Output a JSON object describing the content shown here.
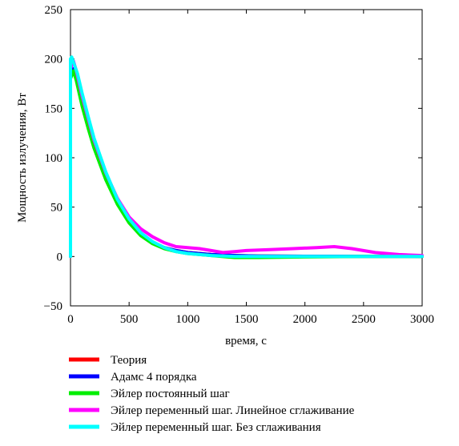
{
  "chart_data": {
    "type": "line",
    "title": "",
    "xlabel": "время, с",
    "ylabel": "Мощность излучения, Вт",
    "xlim": [
      0,
      3000
    ],
    "ylim": [
      -50,
      250
    ],
    "xticks": [
      0,
      500,
      1000,
      1500,
      2000,
      2500,
      3000
    ],
    "xtick_labels": [
      "0",
      "500",
      "1000",
      "1500",
      "2000",
      "2500",
      "3000"
    ],
    "yticks": [
      -50,
      0,
      50,
      100,
      150,
      200,
      250
    ],
    "ytick_labels": [
      "−50",
      "0",
      "50",
      "100",
      "150",
      "200",
      "250"
    ],
    "grid": false,
    "legend_position": "bottom",
    "series": [
      {
        "name": "Теория",
        "color": "#ff0000",
        "x": [
          0,
          0,
          25,
          50,
          100,
          150,
          200,
          300,
          400,
          500,
          600,
          700,
          800,
          900,
          1000,
          1200,
          1400,
          1600,
          2000,
          2500,
          3000
        ],
        "y": [
          0,
          185,
          190,
          180,
          155,
          132,
          112,
          80,
          55,
          36,
          22,
          14,
          9,
          6,
          4,
          2,
          1,
          0.5,
          0.3,
          0.2,
          0.1
        ]
      },
      {
        "name": "Адамс 4 порядка",
        "color": "#0000ff",
        "x": [
          0,
          0,
          25,
          50,
          100,
          150,
          200,
          300,
          400,
          500,
          600,
          700,
          800,
          900,
          1000,
          1200,
          1400,
          1600,
          2000,
          2500,
          3000
        ],
        "y": [
          0,
          185,
          190,
          180,
          155,
          132,
          112,
          80,
          55,
          36,
          22,
          14,
          9,
          6,
          4,
          2,
          1,
          0.5,
          0.3,
          0.2,
          0.1
        ]
      },
      {
        "name": "Эйлер постоянный шаг",
        "color": "#00ee00",
        "x": [
          0,
          0,
          25,
          50,
          100,
          150,
          200,
          300,
          400,
          500,
          600,
          700,
          800,
          900,
          1000,
          1200,
          1400,
          1600,
          2000,
          2500,
          3000
        ],
        "y": [
          0,
          180,
          188,
          178,
          152,
          130,
          110,
          78,
          53,
          34,
          21,
          13,
          8,
          5,
          3,
          1,
          -1,
          -1,
          -0.5,
          0,
          0
        ]
      },
      {
        "name": "Эйлер переменный шаг. Линейное сглаживание",
        "color": "#ff00ff",
        "x": [
          0,
          0,
          25,
          50,
          100,
          150,
          200,
          300,
          400,
          500,
          600,
          700,
          800,
          900,
          1000,
          1100,
          1200,
          1300,
          1400,
          1500,
          1700,
          1900,
          2100,
          2250,
          2400,
          2600,
          2800,
          3000
        ],
        "y": [
          0,
          190,
          198,
          188,
          162,
          140,
          118,
          85,
          59,
          40,
          28,
          20,
          14,
          10,
          9,
          8,
          6,
          4,
          5,
          6,
          7,
          8,
          9,
          10,
          8,
          4,
          2,
          1
        ]
      },
      {
        "name": "Эйлер переменный шаг. Без сглаживания",
        "color": "#00ffff",
        "x": [
          0,
          0,
          10,
          30,
          60,
          100,
          150,
          200,
          300,
          400,
          500,
          600,
          700,
          800,
          900,
          1000,
          1200,
          1400,
          1600,
          2000,
          2500,
          3000
        ],
        "y": [
          0,
          200,
          202,
          195,
          185,
          165,
          142,
          120,
          86,
          58,
          38,
          24,
          15,
          9,
          5,
          3,
          1,
          0,
          0,
          0,
          0,
          0
        ]
      }
    ]
  }
}
